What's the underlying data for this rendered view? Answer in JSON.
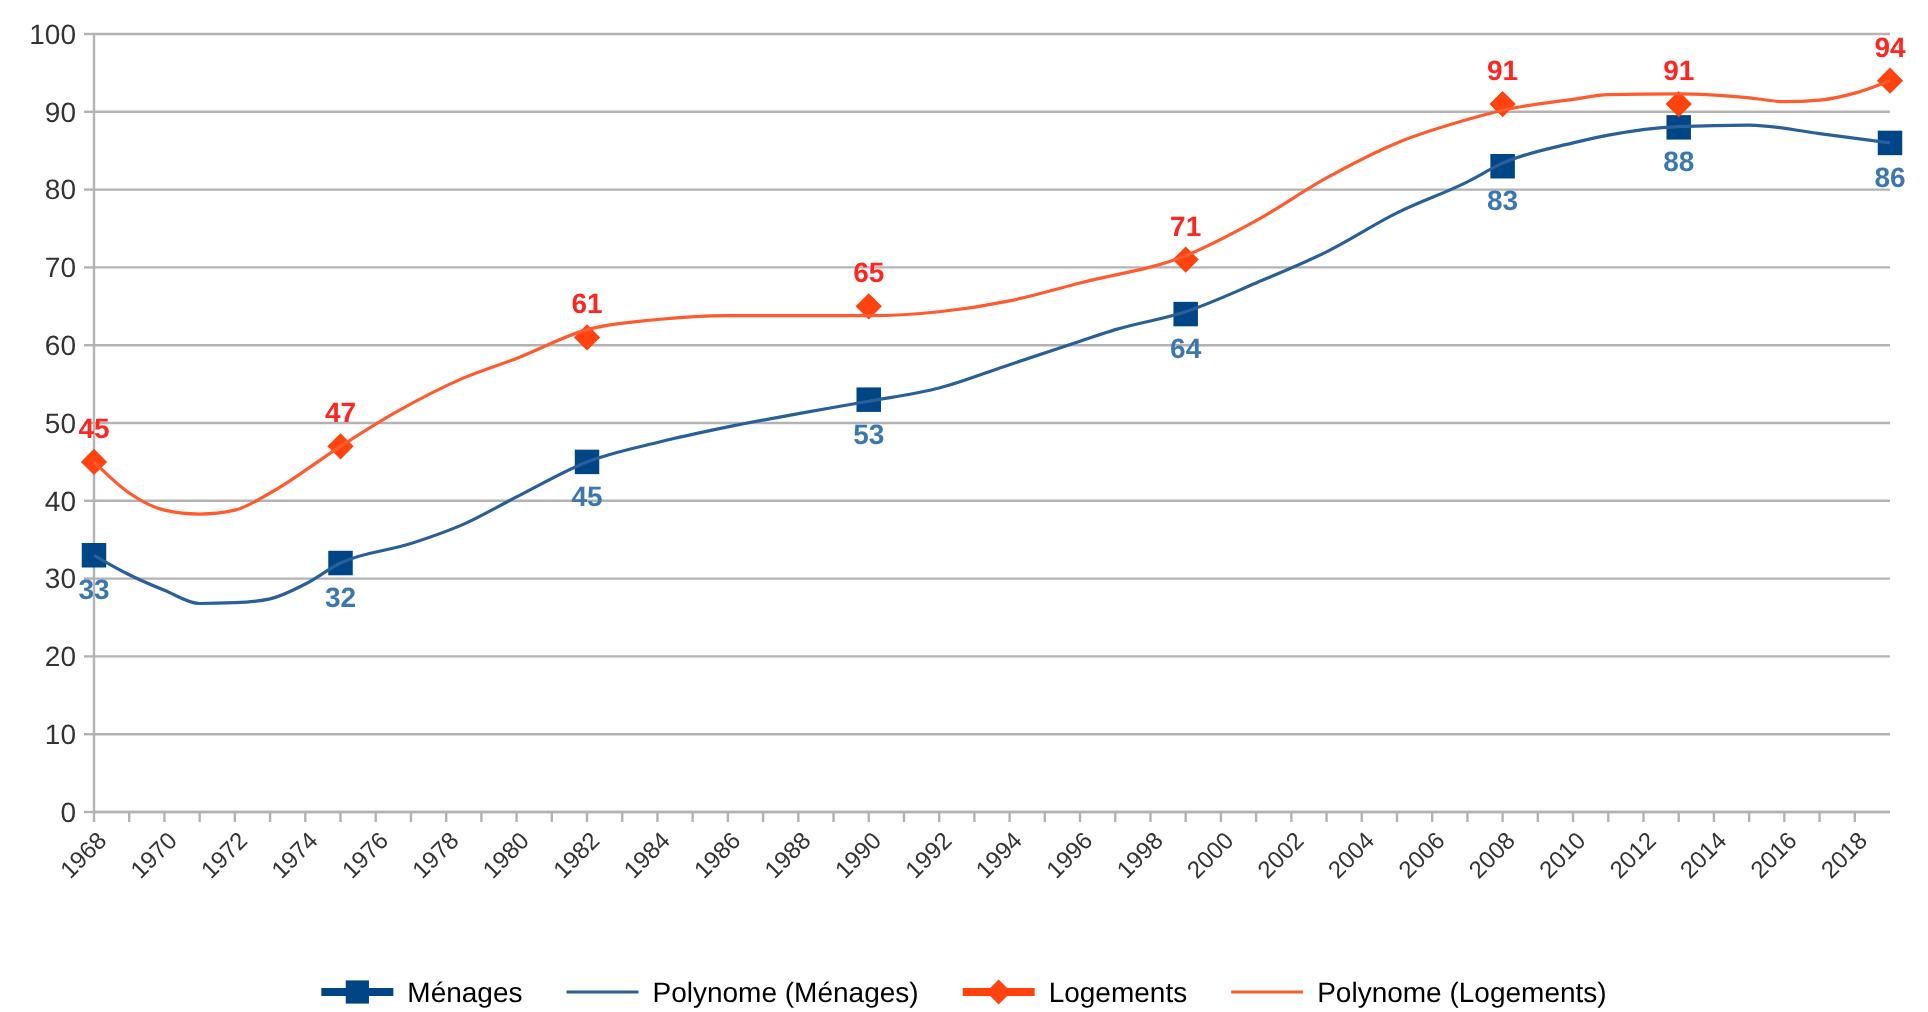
{
  "chart_data": {
    "type": "scatter",
    "xlim": [
      1968,
      2019
    ],
    "xticks": [
      1968,
      {
        "value": 1969,
        "label": null
      },
      1970,
      {
        "value": 1971,
        "label": null
      },
      1972,
      {
        "value": 1973,
        "label": null
      },
      1974,
      {
        "value": 1975,
        "label": null
      },
      1976,
      {
        "value": 1977,
        "label": null
      },
      1978,
      {
        "value": 1979,
        "label": null
      },
      1980,
      {
        "value": 1981,
        "label": null
      },
      1982,
      {
        "value": 1983,
        "label": null
      },
      1984,
      {
        "value": 1985,
        "label": null
      },
      1986,
      {
        "value": 1987,
        "label": null
      },
      1988,
      {
        "value": 1989,
        "label": null
      },
      1990,
      {
        "value": 1991,
        "label": null
      },
      1992,
      {
        "value": 1993,
        "label": null
      },
      1994,
      {
        "value": 1995,
        "label": null
      },
      1996,
      {
        "value": 1997,
        "label": null
      },
      1998,
      {
        "value": 1999,
        "label": null
      },
      2000,
      {
        "value": 2001,
        "label": null
      },
      2002,
      {
        "value": 2003,
        "label": null
      },
      2004,
      {
        "value": 2005,
        "label": null
      },
      2006,
      {
        "value": 2007,
        "label": null
      },
      2008,
      {
        "value": 2009,
        "label": null
      },
      2010,
      {
        "value": 2011,
        "label": null
      },
      2012,
      {
        "value": 2013,
        "label": null
      },
      2014,
      {
        "value": 2015,
        "label": null
      },
      2016,
      {
        "value": 2017,
        "label": null
      },
      2018
    ],
    "ylim": [
      0,
      100
    ],
    "yticks": [
      0,
      10,
      20,
      30,
      40,
      50,
      60,
      70,
      80,
      90,
      100
    ],
    "grid": "y",
    "legend": "bottom",
    "series": [
      {
        "name": "Ménages",
        "marker": "square",
        "color": "#004586",
        "x": [
          1968,
          1975,
          1982,
          1990,
          1999,
          2008,
          2013,
          2019
        ],
        "values": [
          33,
          32,
          45,
          53,
          64,
          83,
          88,
          86
        ],
        "value_labels": [
          "33",
          "32",
          "45",
          "53",
          "64",
          "83",
          "88",
          "86"
        ]
      },
      {
        "name": "Polynome (Ménages)",
        "type": "line",
        "color": "#2a6099",
        "x": [
          1968,
          1969,
          1970,
          1971,
          1972,
          1973,
          1974,
          1975,
          1977,
          1978.5,
          1980,
          1982,
          1984,
          1986,
          1988,
          1990,
          1992,
          1994,
          1996,
          1997,
          1999,
          2001,
          2003,
          2005,
          2007,
          2008,
          2010,
          2011,
          2013,
          2015,
          2017,
          2019
        ],
        "values": [
          33,
          30.5,
          28.5,
          26.8,
          26.9,
          27.4,
          29.3,
          32,
          34.5,
          37,
          40.5,
          45,
          47.5,
          49.5,
          51.2,
          52.8,
          54.5,
          57.5,
          60.5,
          62,
          64.3,
          68,
          72,
          77,
          81,
          83.4,
          86,
          87,
          88.1,
          88.3,
          87.2,
          86
        ]
      },
      {
        "name": "Logements",
        "marker": "diamond",
        "color": "#ff420e",
        "x": [
          1968,
          1975,
          1982,
          1990,
          1999,
          2008,
          2013,
          2019
        ],
        "values": [
          45,
          47,
          61,
          65,
          71,
          91,
          91,
          94
        ],
        "value_labels": [
          "45",
          "47",
          "61",
          "65",
          "71",
          "91",
          "91",
          "94"
        ]
      },
      {
        "name": "Polynome (Logements)",
        "type": "line",
        "color": "#ff5b2e",
        "x": [
          1968,
          1969,
          1970,
          1971,
          1972,
          1973,
          1975,
          1976.5,
          1978.5,
          1980,
          1982,
          1984,
          1986,
          1988,
          1990,
          1992,
          1994,
          1996,
          1999,
          2001,
          2003,
          2005,
          2007,
          2008,
          2010,
          2011,
          2013,
          2015,
          2016,
          2017,
          2018,
          2019
        ],
        "values": [
          45,
          41,
          38.8,
          38.3,
          38.8,
          41,
          47,
          51.2,
          55.8,
          58.3,
          62,
          63.3,
          63.8,
          63.8,
          63.8,
          64.3,
          65.7,
          68,
          71.5,
          76,
          81.5,
          86,
          89,
          90.2,
          91.6,
          92.2,
          92.3,
          91.8,
          91.3,
          91.5,
          92.4,
          94
        ]
      }
    ]
  }
}
